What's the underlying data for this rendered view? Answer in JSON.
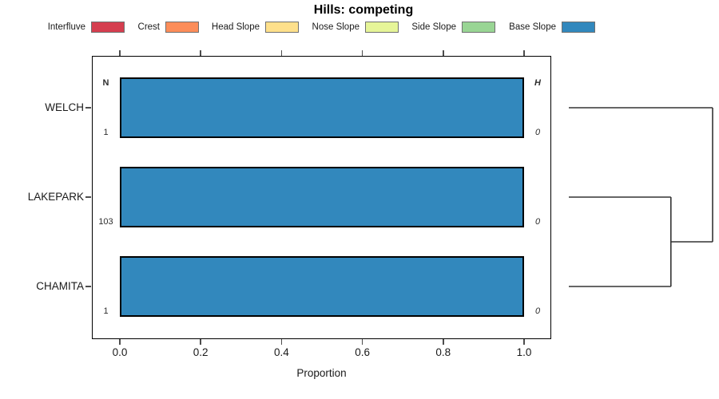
{
  "title": "Hills: competing",
  "chart_data": {
    "type": "bar",
    "orientation": "horizontal",
    "title": "Hills: competing",
    "xlabel": "Proportion",
    "xlim": [
      0,
      1
    ],
    "xticks": [
      0.0,
      0.2,
      0.4,
      0.6,
      0.8,
      1.0
    ],
    "xtick_labels": [
      "0.0",
      "0.2",
      "0.4",
      "0.6",
      "0.8",
      "1.0"
    ],
    "grid": false,
    "legend_position": "top",
    "categories": [
      "WELCH",
      "LAKEPARK",
      "CHAMITA"
    ],
    "series": [
      {
        "name": "Interfluve",
        "color": "#D53E4F",
        "values": [
          0,
          0,
          0
        ]
      },
      {
        "name": "Crest",
        "color": "#FC8D59",
        "values": [
          0,
          0,
          0
        ]
      },
      {
        "name": "Head Slope",
        "color": "#FEE08B",
        "values": [
          0,
          0,
          0
        ]
      },
      {
        "name": "Nose Slope",
        "color": "#E6F598",
        "values": [
          0,
          0,
          0
        ]
      },
      {
        "name": "Side Slope",
        "color": "#99D594",
        "values": [
          0,
          0,
          0
        ]
      },
      {
        "name": "Base Slope",
        "color": "#3288BD",
        "values": [
          1,
          1,
          1
        ]
      }
    ],
    "annotations": {
      "n_header": "N",
      "h_header": "H",
      "n_values": [
        "1",
        "103",
        "1"
      ],
      "h_values": [
        "0",
        "0",
        "0"
      ]
    },
    "dendrogram": {
      "leaves": [
        "WELCH",
        "LAKEPARK",
        "CHAMITA"
      ],
      "joins": [
        {
          "a": "LAKEPARK",
          "b": "CHAMITA",
          "rel_height": 0.71
        },
        {
          "a": "WELCH",
          "b": "@0",
          "rel_height": 1.0
        }
      ]
    },
    "colors": {
      "bar_fill": "#3288BD",
      "bar_border": "#000000",
      "dendrogram_line": "#333333",
      "axis_tick": "#4d4d4d"
    }
  }
}
